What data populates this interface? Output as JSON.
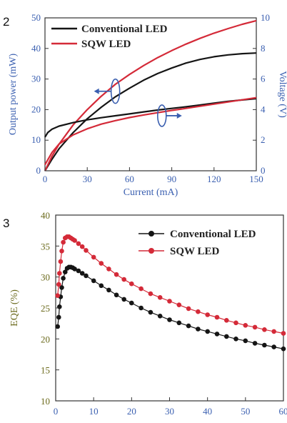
{
  "colors": {
    "axis_blue": "#3a5fb0",
    "axis_olive": "#6b6a1c",
    "black_series": "#151515",
    "red_series": "#d42a38"
  },
  "panels": [
    {
      "label": "2"
    },
    {
      "label": "3"
    }
  ],
  "chart_data": [
    {
      "type": "line",
      "title": "",
      "xlabel": "Current (mA)",
      "ylabel": "Output power (mW)",
      "y2label": "Voltage (V)",
      "xlim": [
        0,
        150
      ],
      "ylim": [
        0,
        50
      ],
      "y2lim": [
        0,
        10
      ],
      "xticks": [
        "0",
        "30",
        "60",
        "90",
        "120",
        "150"
      ],
      "yticks": [
        "0",
        "10",
        "20",
        "30",
        "40",
        "50"
      ],
      "y2ticks": [
        "0",
        "2",
        "4",
        "6",
        "8",
        "10"
      ],
      "legend": {
        "placement": "top-left",
        "entries": [
          "Conventional LED",
          "SQW LED"
        ]
      },
      "series": [
        {
          "name": "Conventional LED",
          "axis": "power",
          "color": "black",
          "x": [
            0,
            5,
            10,
            20,
            30,
            40,
            50,
            60,
            70,
            80,
            90,
            100,
            110,
            120,
            130,
            140,
            150
          ],
          "y": [
            0,
            3.8,
            7.2,
            12.5,
            17,
            20.8,
            24.2,
            27,
            29.6,
            31.8,
            33.6,
            35.2,
            36.4,
            37.3,
            37.9,
            38.3,
            38.5
          ]
        },
        {
          "name": "SQW LED",
          "axis": "power",
          "color": "red",
          "x": [
            0,
            5,
            10,
            20,
            30,
            40,
            50,
            60,
            70,
            80,
            90,
            100,
            110,
            120,
            130,
            140,
            150
          ],
          "y": [
            0,
            4.8,
            8.7,
            15,
            20,
            24.4,
            28.3,
            31.5,
            34.4,
            37,
            39.3,
            41.4,
            43.3,
            45,
            46.5,
            47.9,
            49.1
          ]
        },
        {
          "name": "Conventional LED",
          "axis": "voltage",
          "color": "black",
          "x": [
            0,
            2,
            5,
            10,
            20,
            30,
            40,
            50,
            60,
            70,
            80,
            90,
            100,
            110,
            120,
            130,
            140,
            150
          ],
          "y": [
            2.2,
            2.5,
            2.72,
            2.92,
            3.15,
            3.33,
            3.47,
            3.6,
            3.72,
            3.85,
            3.97,
            4.08,
            4.18,
            4.3,
            4.42,
            4.54,
            4.63,
            4.72
          ]
        },
        {
          "name": "SQW LED",
          "axis": "voltage",
          "color": "red",
          "x": [
            0,
            5,
            10,
            20,
            30,
            40,
            50,
            60,
            70,
            80,
            90,
            100,
            110,
            120,
            130,
            140,
            150
          ],
          "y": [
            0.4,
            1.2,
            1.75,
            2.35,
            2.75,
            3.05,
            3.28,
            3.48,
            3.65,
            3.8,
            3.95,
            4.08,
            4.22,
            4.36,
            4.5,
            4.64,
            4.78
          ]
        }
      ],
      "annotations": [
        {
          "type": "ellipse-arrow",
          "target_axis": "left",
          "at": [
            50,
            26
          ]
        },
        {
          "type": "ellipse-arrow",
          "target_axis": "right",
          "at": [
            83,
            18
          ]
        }
      ]
    },
    {
      "type": "scatter",
      "title": "",
      "xlabel": "",
      "ylabel": "EQE (%)",
      "xlim": [
        0,
        60
      ],
      "ylim": [
        10,
        40
      ],
      "xticks": [
        "0",
        "10",
        "20",
        "30",
        "40",
        "50",
        "60"
      ],
      "yticks": [
        "10",
        "15",
        "20",
        "25",
        "30",
        "35",
        "40"
      ],
      "legend": {
        "placement": "top-right",
        "entries": [
          "Conventional LED",
          "SQW LED"
        ]
      },
      "series": [
        {
          "name": "Conventional LED",
          "color": "black",
          "x": [
            0.5,
            0.8,
            1,
            1.3,
            1.6,
            2,
            2.5,
            3,
            3.5,
            4,
            4.5,
            5,
            6,
            7,
            8,
            10,
            12,
            14,
            16,
            18,
            20,
            22.5,
            25,
            27.5,
            30,
            32.5,
            35,
            37.5,
            40,
            42.5,
            45,
            47.5,
            50,
            52.5,
            55,
            57.5,
            60
          ],
          "y": [
            22,
            23.5,
            25.2,
            26.8,
            28.3,
            29.8,
            30.8,
            31.4,
            31.6,
            31.6,
            31.5,
            31.3,
            31,
            30.6,
            30.2,
            29.4,
            28.6,
            27.9,
            27.1,
            26.4,
            25.8,
            25,
            24.3,
            23.7,
            23.1,
            22.6,
            22.1,
            21.6,
            21.2,
            20.8,
            20.4,
            20,
            19.7,
            19.3,
            19,
            18.7,
            18.4
          ]
        },
        {
          "name": "SQW LED",
          "color": "red",
          "x": [
            0.5,
            0.8,
            1,
            1.3,
            1.6,
            2,
            2.5,
            3,
            3.5,
            4,
            4.5,
            5,
            6,
            7,
            8,
            10,
            12,
            14,
            16,
            18,
            20,
            22.5,
            25,
            27.5,
            30,
            32.5,
            35,
            37.5,
            40,
            42.5,
            45,
            47.5,
            50,
            52.5,
            55,
            57.5,
            60
          ],
          "y": [
            27,
            28.8,
            30.6,
            32.5,
            34.2,
            35.6,
            36.3,
            36.5,
            36.5,
            36.3,
            36.1,
            35.9,
            35.4,
            34.9,
            34.3,
            33.2,
            32.2,
            31.3,
            30.4,
            29.6,
            28.9,
            28.1,
            27.3,
            26.7,
            26.1,
            25.5,
            24.9,
            24.4,
            23.9,
            23.5,
            23,
            22.6,
            22.2,
            21.9,
            21.5,
            21.2,
            20.9
          ]
        }
      ]
    }
  ]
}
